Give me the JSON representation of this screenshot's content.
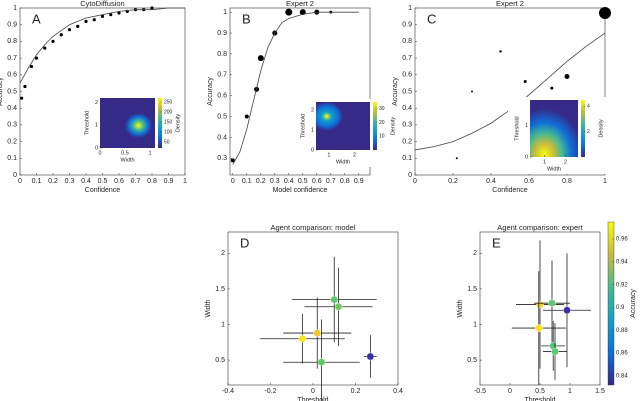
{
  "chart_data": [
    {
      "type": "scatter",
      "panel_label": "A",
      "title": "CytoDiffusion",
      "xlabel": "Confidence",
      "ylabel": "Accuracy",
      "xlim": [
        0,
        1
      ],
      "ylim": [
        0,
        1
      ],
      "xticks": [
        0,
        0.1,
        0.2,
        0.3,
        0.4,
        0.5,
        0.6,
        0.7,
        0.8,
        0.9,
        1
      ],
      "yticks": [
        0,
        0.1,
        0.2,
        0.3,
        0.4,
        0.5,
        0.6,
        0.7,
        0.8,
        0.9,
        1
      ],
      "series": [
        {
          "type": "scatter",
          "color": "#000000",
          "x": [
            0.01,
            0.03,
            0.07,
            0.1,
            0.15,
            0.2,
            0.25,
            0.3,
            0.35,
            0.4,
            0.45,
            0.5,
            0.55,
            0.6,
            0.65,
            0.7,
            0.75,
            0.8
          ],
          "values": [
            0.46,
            0.53,
            0.65,
            0.7,
            0.76,
            0.8,
            0.84,
            0.87,
            0.89,
            0.92,
            0.93,
            0.95,
            0.96,
            0.97,
            0.98,
            0.99,
            0.99,
            1.0
          ]
        },
        {
          "type": "line",
          "color": "#444444",
          "x": [
            0,
            0.05,
            0.1,
            0.15,
            0.2,
            0.3,
            0.4,
            0.5,
            0.6,
            0.7,
            0.8,
            0.9,
            1
          ],
          "values": [
            0.55,
            0.64,
            0.72,
            0.78,
            0.83,
            0.9,
            0.94,
            0.96,
            0.98,
            0.99,
            0.99,
            1.0,
            1.0
          ]
        }
      ],
      "inset": {
        "xlabel": "Width",
        "ylabel": "Threshold",
        "clabel": "Density",
        "xlim": [
          0,
          1.1
        ],
        "ylim": [
          0,
          2.2
        ],
        "xticks": [
          0,
          0.5,
          1
        ],
        "yticks": [
          0,
          1,
          2
        ],
        "clim": [
          20,
          270
        ],
        "cticks": [
          50,
          100,
          150,
          200,
          250
        ]
      }
    },
    {
      "type": "scatter",
      "panel_label": "B",
      "title": "Expert 2",
      "xlabel": "Model confidence",
      "ylabel": "Accuracy",
      "xlim": [
        -0.02,
        0.98
      ],
      "ylim": [
        0.22,
        1.02
      ],
      "xticks": [
        0,
        0.1,
        0.2,
        0.3,
        0.4,
        0.5,
        0.6,
        0.7,
        0.8,
        0.9
      ],
      "yticks": [
        0.3,
        0.4,
        0.5,
        0.6,
        0.7,
        0.8,
        0.9,
        1
      ],
      "series": [
        {
          "type": "scatter",
          "color": "#000000",
          "x": [
            0,
            0.1,
            0.17,
            0.2,
            0.3,
            0.4,
            0.5,
            0.6,
            0.7
          ],
          "values": [
            0.29,
            0.5,
            0.63,
            0.78,
            0.9,
            1.0,
            1.0,
            1.0,
            1.0
          ],
          "sizes": [
            2,
            2,
            2.5,
            3,
            2.5,
            3.5,
            3,
            2.5,
            1.5
          ]
        },
        {
          "type": "line",
          "color": "#444444",
          "x": [
            0,
            0.05,
            0.1,
            0.15,
            0.2,
            0.25,
            0.3,
            0.35,
            0.4,
            0.5,
            0.6,
            0.7,
            0.8,
            0.9
          ],
          "values": [
            0.27,
            0.33,
            0.44,
            0.58,
            0.72,
            0.83,
            0.9,
            0.95,
            0.97,
            0.99,
            1.0,
            1.0,
            1.0,
            1.0
          ]
        }
      ],
      "inset": {
        "xlabel": "Width",
        "ylabel": "Threshold",
        "clabel": "Density",
        "xlim": [
          0.5,
          2.6
        ],
        "ylim": [
          0,
          2.4
        ],
        "xticks": [
          1,
          2
        ],
        "yticks": [
          0,
          1,
          2
        ],
        "clim": [
          0,
          35
        ],
        "cticks": [
          10,
          20,
          30
        ]
      }
    },
    {
      "type": "scatter",
      "panel_label": "C",
      "title": "Expert 2",
      "xlabel": "Confidence",
      "ylabel": "Accuracy",
      "xlim": [
        0,
        1
      ],
      "ylim": [
        0,
        1
      ],
      "xticks": [
        0,
        0.2,
        0.4,
        0.6,
        0.8,
        1
      ],
      "yticks": [
        0,
        0.1,
        0.2,
        0.3,
        0.4,
        0.5,
        0.6,
        0.7,
        0.8,
        0.9,
        1
      ],
      "series": [
        {
          "type": "scatter",
          "color": "#000000",
          "x": [
            0.22,
            0.3,
            0.45,
            0.58,
            0.72,
            0.8,
            1.0
          ],
          "values": [
            0.1,
            0.5,
            0.74,
            0.56,
            0.52,
            0.59,
            0.97
          ],
          "sizes": [
            1,
            1,
            1.2,
            1.5,
            1.5,
            2.5,
            6
          ]
        },
        {
          "type": "line",
          "color": "#444444",
          "x": [
            0,
            0.1,
            0.2,
            0.3,
            0.4,
            0.5,
            0.6,
            0.7,
            0.8,
            0.9,
            1
          ],
          "values": [
            0.15,
            0.17,
            0.2,
            0.25,
            0.31,
            0.39,
            0.48,
            0.58,
            0.68,
            0.77,
            0.85
          ]
        }
      ],
      "inset": {
        "xlabel": "Width",
        "ylabel": "Threshold",
        "clabel": "Density",
        "xlim": [
          0.3,
          2.6
        ],
        "ylim": [
          0,
          1.8
        ],
        "xticks": [
          1,
          2
        ],
        "yticks": [
          0,
          1
        ],
        "clim": [
          0,
          4.5
        ],
        "cticks": [
          2,
          4
        ]
      }
    },
    {
      "type": "errorscatter",
      "panel_label": "D",
      "title": "Agent comparison: model",
      "xlabel": "Threshold",
      "ylabel": "Width",
      "xlim": [
        -0.4,
        0.4
      ],
      "ylim": [
        0.15,
        2.3
      ],
      "xticks": [
        -0.4,
        -0.2,
        0,
        0.2,
        0.4
      ],
      "yticks": [
        0.5,
        1,
        1.5,
        2
      ],
      "series": [
        {
          "type": "errorscatter",
          "x": [
            0.1,
            0.12,
            0.02,
            -0.05,
            0.04,
            0.27
          ],
          "values": [
            1.35,
            1.25,
            0.88,
            0.8,
            0.47,
            0.55
          ],
          "xerr": [
            0.2,
            0.16,
            0.16,
            0.2,
            0.18,
            0.03
          ],
          "yerr": [
            0.6,
            0.55,
            0.5,
            0.35,
            0.6,
            0.3
          ],
          "colors": [
            "#5cc86a",
            "#6bcc5a",
            "#f5c431",
            "#f7e31a",
            "#5cc86a",
            "#3a2fa8"
          ]
        }
      ]
    },
    {
      "type": "errorscatter",
      "panel_label": "E",
      "title": "Agent comparison: expert",
      "xlabel": "Threshold",
      "ylabel": "Width",
      "xlim": [
        -0.5,
        1.5
      ],
      "ylim": [
        0.15,
        2.3
      ],
      "xticks": [
        -0.5,
        0,
        0.5,
        1,
        1.5
      ],
      "yticks": [
        0.5,
        1,
        1.5,
        2
      ],
      "series": [
        {
          "type": "errorscatter",
          "x": [
            0.5,
            0.7,
            0.95,
            0.48,
            0.72,
            0.75
          ],
          "values": [
            1.28,
            1.3,
            1.2,
            0.95,
            0.7,
            0.62
          ],
          "xerr": [
            0.4,
            0.3,
            0.4,
            0.45,
            0.2,
            0.2
          ],
          "yerr": [
            0.9,
            0.6,
            0.8,
            0.8,
            0.35,
            0.4
          ],
          "colors": [
            "#f5d02a",
            "#5cc86a",
            "#3a2fa8",
            "#f7e31a",
            "#4cc47a",
            "#5cc86a"
          ]
        }
      ],
      "colorbar": {
        "label": "Accuracy",
        "lim": [
          0.832,
          0.975
        ],
        "ticks": [
          0.84,
          0.86,
          0.88,
          0.9,
          0.92,
          0.94,
          0.96
        ]
      }
    }
  ]
}
